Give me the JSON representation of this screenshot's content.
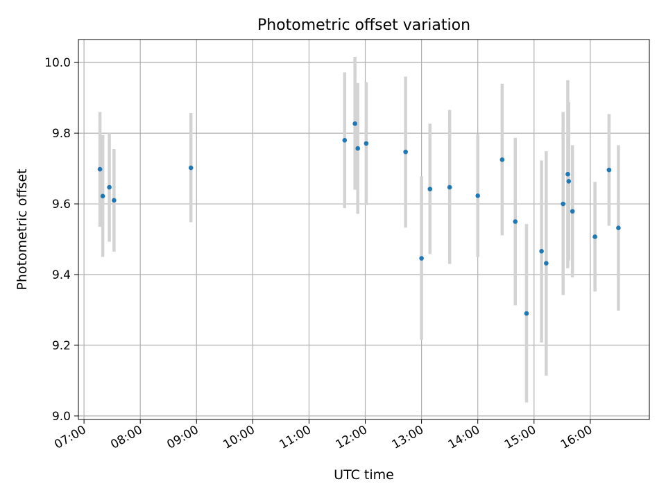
{
  "chart_data": {
    "type": "scatter",
    "title": "Photometric offset variation",
    "xlabel": "UTC time",
    "ylabel": "Photometric offset",
    "x_unit": "UTC time of day (HH:MM)",
    "xlim": [
      "06:54",
      "17:03"
    ],
    "ylim": [
      8.99,
      10.065
    ],
    "grid": true,
    "x_ticks": [
      "07:00",
      "08:00",
      "09:00",
      "10:00",
      "11:00",
      "12:00",
      "13:00",
      "14:00",
      "15:00",
      "16:00"
    ],
    "y_ticks": [
      9.0,
      9.2,
      9.4,
      9.6,
      9.8,
      10.0
    ],
    "y_tick_labels": [
      "9.0",
      "9.2",
      "9.4",
      "9.6",
      "9.8",
      "10.0"
    ],
    "marker_color": "#1f77b4",
    "errorbar_color": "#d3d3d3",
    "grid_color": "#b0b0b0",
    "series": [
      {
        "points": [
          {
            "x": "07:17",
            "y": 9.698,
            "low": 9.535,
            "high": 9.86
          },
          {
            "x": "07:20",
            "y": 9.622,
            "low": 9.45,
            "high": 9.795
          },
          {
            "x": "07:27",
            "y": 9.647,
            "low": 9.493,
            "high": 9.8
          },
          {
            "x": "07:32",
            "y": 9.61,
            "low": 9.465,
            "high": 9.755
          },
          {
            "x": "08:54",
            "y": 9.702,
            "low": 9.548,
            "high": 9.857
          },
          {
            "x": "11:38",
            "y": 9.78,
            "low": 9.588,
            "high": 9.972
          },
          {
            "x": "11:49",
            "y": 9.827,
            "low": 9.64,
            "high": 10.016
          },
          {
            "x": "11:52",
            "y": 9.757,
            "low": 9.572,
            "high": 9.942
          },
          {
            "x": "12:01",
            "y": 9.771,
            "low": 9.597,
            "high": 9.944
          },
          {
            "x": "12:43",
            "y": 9.747,
            "low": 9.533,
            "high": 9.96
          },
          {
            "x": "13:00",
            "y": 9.446,
            "low": 9.215,
            "high": 9.678
          },
          {
            "x": "13:09",
            "y": 9.642,
            "low": 9.458,
            "high": 9.827
          },
          {
            "x": "13:30",
            "y": 9.647,
            "low": 9.43,
            "high": 9.866
          },
          {
            "x": "14:00",
            "y": 9.623,
            "low": 9.45,
            "high": 9.797
          },
          {
            "x": "14:26",
            "y": 9.725,
            "low": 9.511,
            "high": 9.94
          },
          {
            "x": "14:40",
            "y": 9.55,
            "low": 9.313,
            "high": 9.787
          },
          {
            "x": "14:52",
            "y": 9.29,
            "low": 9.038,
            "high": 9.543
          },
          {
            "x": "15:08",
            "y": 9.466,
            "low": 9.208,
            "high": 9.723
          },
          {
            "x": "15:13",
            "y": 9.432,
            "low": 9.114,
            "high": 9.749
          },
          {
            "x": "15:31",
            "y": 9.6,
            "low": 9.342,
            "high": 9.86
          },
          {
            "x": "15:36",
            "y": 9.684,
            "low": 9.418,
            "high": 9.95
          },
          {
            "x": "15:37",
            "y": 9.664,
            "low": 9.44,
            "high": 9.888
          },
          {
            "x": "15:41",
            "y": 9.579,
            "low": 9.392,
            "high": 9.766
          },
          {
            "x": "16:05",
            "y": 9.507,
            "low": 9.352,
            "high": 9.662
          },
          {
            "x": "16:20",
            "y": 9.696,
            "low": 9.538,
            "high": 9.854
          },
          {
            "x": "16:30",
            "y": 9.532,
            "low": 9.298,
            "high": 9.766
          }
        ]
      }
    ]
  }
}
